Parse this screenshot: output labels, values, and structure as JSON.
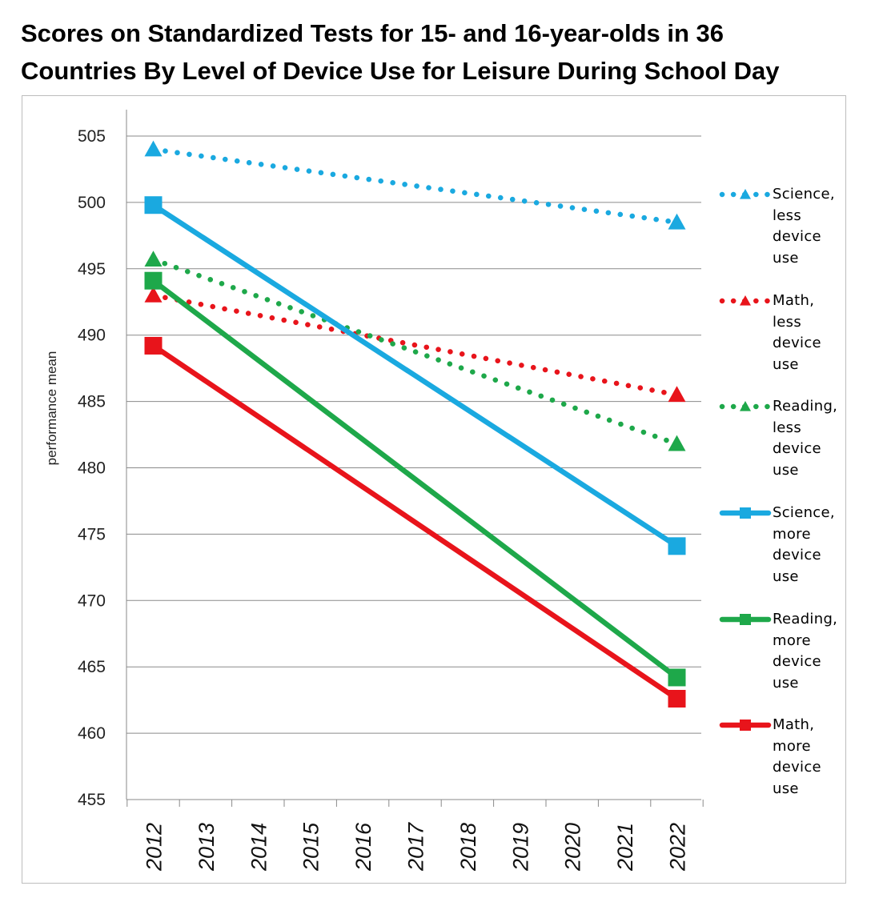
{
  "title_line1": "Scores on Standardized Tests for 15- and 16-year-olds in 36",
  "title_line2": "Countries By Level of Device Use for Leisure During School Day",
  "chart_data": {
    "type": "line",
    "title": "Scores on Standardized Tests for 15- and 16-year-olds in 36 Countries By Level of Device Use for Leisure During School Day",
    "xlabel": "",
    "ylabel": "performance mean",
    "categories": [
      "2012",
      "2013",
      "2014",
      "2015",
      "2016",
      "2017",
      "2018",
      "2019",
      "2020",
      "2021",
      "2022"
    ],
    "ylim": [
      455,
      505
    ],
    "yticks": [
      455,
      460,
      465,
      470,
      475,
      480,
      485,
      490,
      495,
      500,
      505
    ],
    "grid": "horizontal",
    "legend_position": "right",
    "series": [
      {
        "name": "Science, less device use",
        "color": "#1aa9e0",
        "style": "dotted",
        "marker": "triangle",
        "x": [
          "2012",
          "2022"
        ],
        "values": [
          504,
          498.5
        ]
      },
      {
        "name": "Math, less device use",
        "color": "#e8141b",
        "style": "dotted",
        "marker": "triangle",
        "x": [
          "2012",
          "2022"
        ],
        "values": [
          493,
          485.5
        ]
      },
      {
        "name": "Reading, less device use",
        "color": "#1ea84a",
        "style": "dotted",
        "marker": "triangle",
        "x": [
          "2012",
          "2022"
        ],
        "values": [
          495.7,
          481.8
        ]
      },
      {
        "name": "Science, more device use",
        "color": "#1aa9e0",
        "style": "solid",
        "marker": "square",
        "x": [
          "2012",
          "2022"
        ],
        "values": [
          499.8,
          474.1
        ]
      },
      {
        "name": "Reading, more device use",
        "color": "#1ea84a",
        "style": "solid",
        "marker": "square",
        "x": [
          "2012",
          "2022"
        ],
        "values": [
          494.1,
          464.2
        ]
      },
      {
        "name": "Math, more device use",
        "color": "#e8141b",
        "style": "solid",
        "marker": "square",
        "x": [
          "2012",
          "2022"
        ],
        "values": [
          489.2,
          462.6
        ]
      }
    ]
  }
}
